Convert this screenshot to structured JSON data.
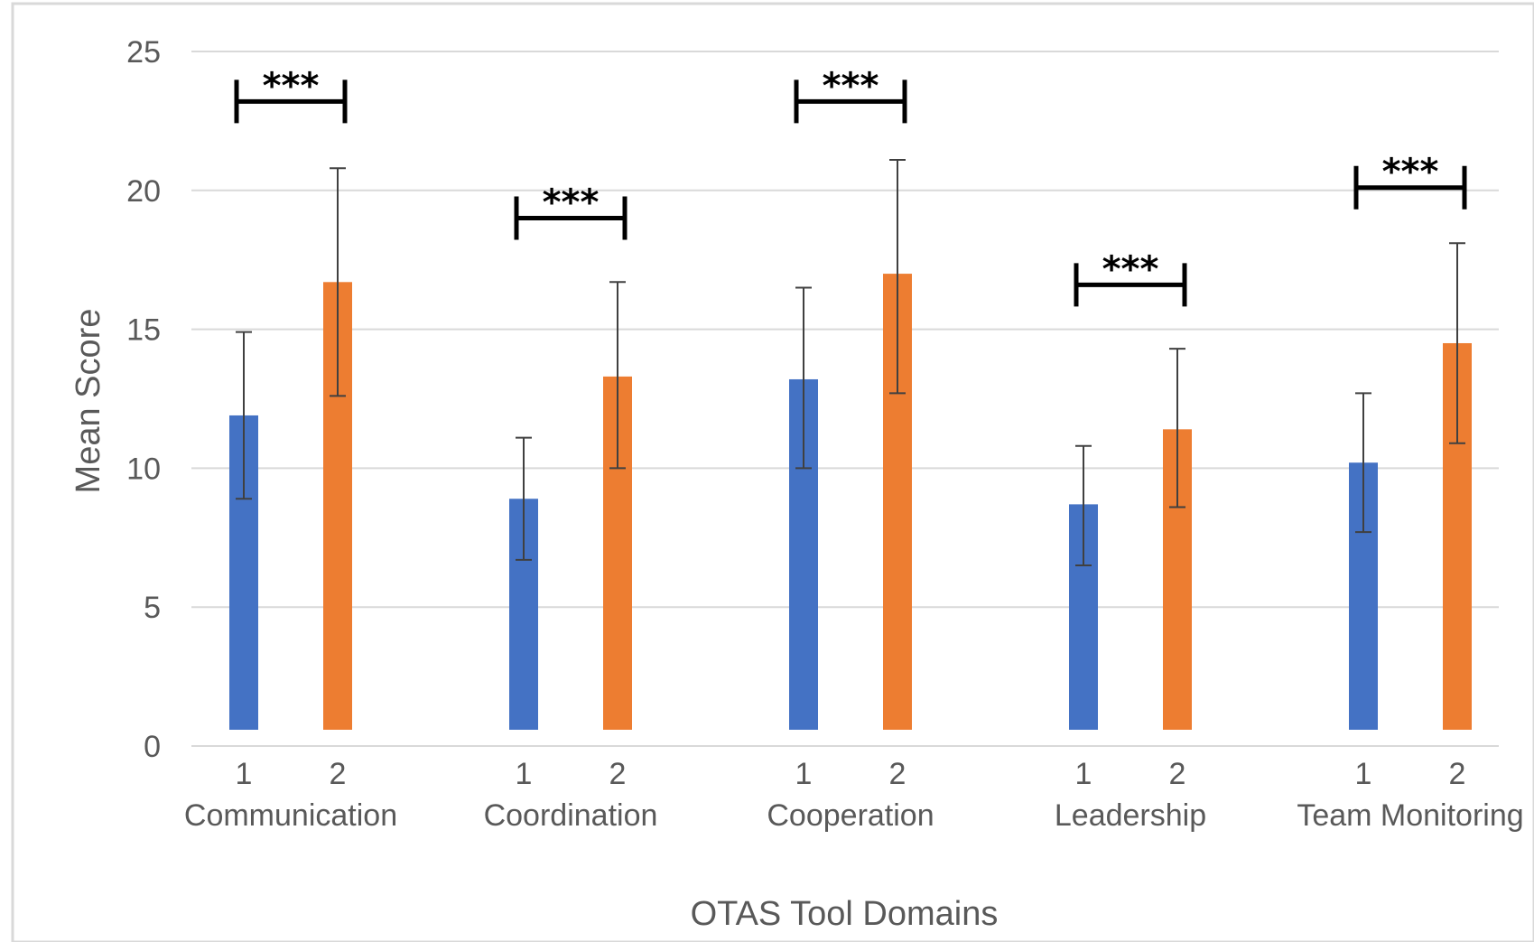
{
  "chart_data": {
    "type": "bar",
    "title": "",
    "xlabel": "OTAS Tool Domains",
    "ylabel": "Mean Score",
    "ylim": [
      0,
      25
    ],
    "yticks": [
      0,
      5,
      10,
      15,
      20,
      25
    ],
    "grid": true,
    "categories": [
      "Communication",
      "Coordination",
      "Cooperation",
      "Leadership",
      "Team Monitoring"
    ],
    "sub_labels": [
      "1",
      "2"
    ],
    "series": [
      {
        "color": "#4472C4",
        "values": [
          11.9,
          8.9,
          13.2,
          8.7,
          10.2
        ],
        "error_low": [
          8.9,
          6.7,
          10.0,
          6.5,
          7.7
        ],
        "error_high": [
          14.9,
          11.1,
          16.5,
          10.8,
          12.7
        ]
      },
      {
        "color": "#ED7D31",
        "values": [
          16.7,
          13.3,
          17.0,
          11.4,
          14.5
        ],
        "error_low": [
          12.6,
          10.0,
          12.7,
          8.6,
          10.9
        ],
        "error_high": [
          20.8,
          16.7,
          21.1,
          14.3,
          18.1
        ]
      }
    ],
    "significance": [
      {
        "label": "***",
        "y": 23.2
      },
      {
        "label": "***",
        "y": 19.0
      },
      {
        "label": "***",
        "y": 23.2
      },
      {
        "label": "***",
        "y": 16.6
      },
      {
        "label": "***",
        "y": 20.1
      }
    ]
  }
}
